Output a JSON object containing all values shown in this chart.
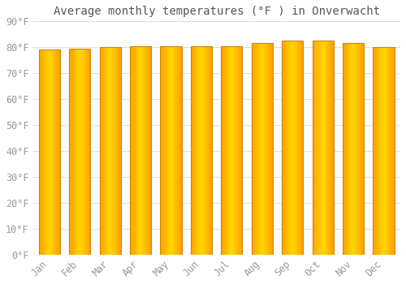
{
  "title": "Average monthly temperatures (°F ) in Onverwacht",
  "months": [
    "Jan",
    "Feb",
    "Mar",
    "Apr",
    "May",
    "Jun",
    "Jul",
    "Aug",
    "Sep",
    "Oct",
    "Nov",
    "Dec"
  ],
  "values": [
    79.0,
    79.5,
    80.0,
    80.5,
    80.5,
    80.5,
    80.5,
    81.5,
    82.5,
    82.5,
    81.5,
    80.0
  ],
  "background_color": "#FFFFFF",
  "grid_color": "#DDDDDD",
  "ylim": [
    0,
    90
  ],
  "yticks": [
    0,
    10,
    20,
    30,
    40,
    50,
    60,
    70,
    80,
    90
  ],
  "title_fontsize": 10,
  "tick_fontsize": 8.5,
  "bar_width": 0.7,
  "bar_color_center": "#FFD000",
  "bar_color_edge": "#FFA000",
  "bar_border_color": "#CC8800"
}
